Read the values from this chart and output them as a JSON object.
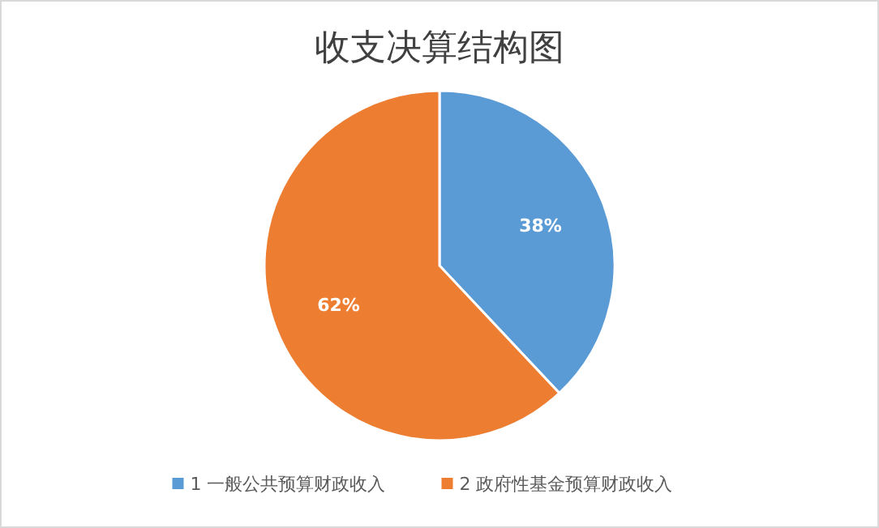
{
  "chart_data": {
    "type": "pie",
    "title": "收支决算结构图",
    "categories": [
      "1 一般公共预算财政收入",
      "2 政府性基金预算财政收入"
    ],
    "values": [
      38,
      62
    ],
    "colors": [
      "#5b9bd5",
      "#ed7d31"
    ],
    "value_labels": [
      "38%",
      "62%"
    ],
    "legend": "bottom"
  }
}
